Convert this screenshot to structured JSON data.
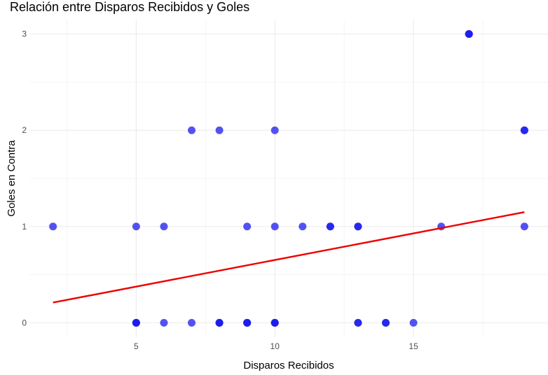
{
  "chart_data": {
    "type": "scatter",
    "title": "Relación entre Disparos Recibidos y Goles",
    "xlabel": "Disparos Recibidos",
    "ylabel": "Goles en Contra",
    "xlim": [
      1.15,
      19.85
    ],
    "ylim": [
      -0.15,
      3.15
    ],
    "x_ticks": [
      5,
      10,
      15
    ],
    "y_ticks": [
      0,
      1,
      2,
      3
    ],
    "x_tick_labels": [
      "5",
      "10",
      "15"
    ],
    "y_tick_labels": [
      "0",
      "1",
      "2",
      "3"
    ],
    "grid": true,
    "legend": "none",
    "point_color": "#1a1aee",
    "line_color": "#ee0000",
    "points": [
      {
        "x": 2,
        "y": 1
      },
      {
        "x": 5,
        "y": 1
      },
      {
        "x": 6,
        "y": 1
      },
      {
        "x": 9,
        "y": 1
      },
      {
        "x": 10,
        "y": 1
      },
      {
        "x": 11,
        "y": 1
      },
      {
        "x": 12,
        "y": 1
      },
      {
        "x": 12,
        "y": 1
      },
      {
        "x": 13,
        "y": 1
      },
      {
        "x": 13,
        "y": 1
      },
      {
        "x": 16,
        "y": 1
      },
      {
        "x": 19,
        "y": 1
      },
      {
        "x": 7,
        "y": 2
      },
      {
        "x": 8,
        "y": 2
      },
      {
        "x": 10,
        "y": 2
      },
      {
        "x": 19,
        "y": 2
      },
      {
        "x": 19,
        "y": 2
      },
      {
        "x": 17,
        "y": 3
      },
      {
        "x": 17,
        "y": 3
      },
      {
        "x": 17,
        "y": 3
      },
      {
        "x": 5,
        "y": 0
      },
      {
        "x": 5,
        "y": 0
      },
      {
        "x": 5,
        "y": 0
      },
      {
        "x": 6,
        "y": 0
      },
      {
        "x": 7,
        "y": 0
      },
      {
        "x": 8,
        "y": 0
      },
      {
        "x": 8,
        "y": 0
      },
      {
        "x": 8,
        "y": 0
      },
      {
        "x": 9,
        "y": 0
      },
      {
        "x": 9,
        "y": 0
      },
      {
        "x": 9,
        "y": 0
      },
      {
        "x": 10,
        "y": 0
      },
      {
        "x": 10,
        "y": 0
      },
      {
        "x": 10,
        "y": 0
      },
      {
        "x": 13,
        "y": 0
      },
      {
        "x": 13,
        "y": 0
      },
      {
        "x": 14,
        "y": 0
      },
      {
        "x": 14,
        "y": 0
      },
      {
        "x": 15,
        "y": 0
      }
    ],
    "trend_line": {
      "x": [
        2,
        19
      ],
      "y": [
        0.21,
        1.15
      ]
    }
  }
}
